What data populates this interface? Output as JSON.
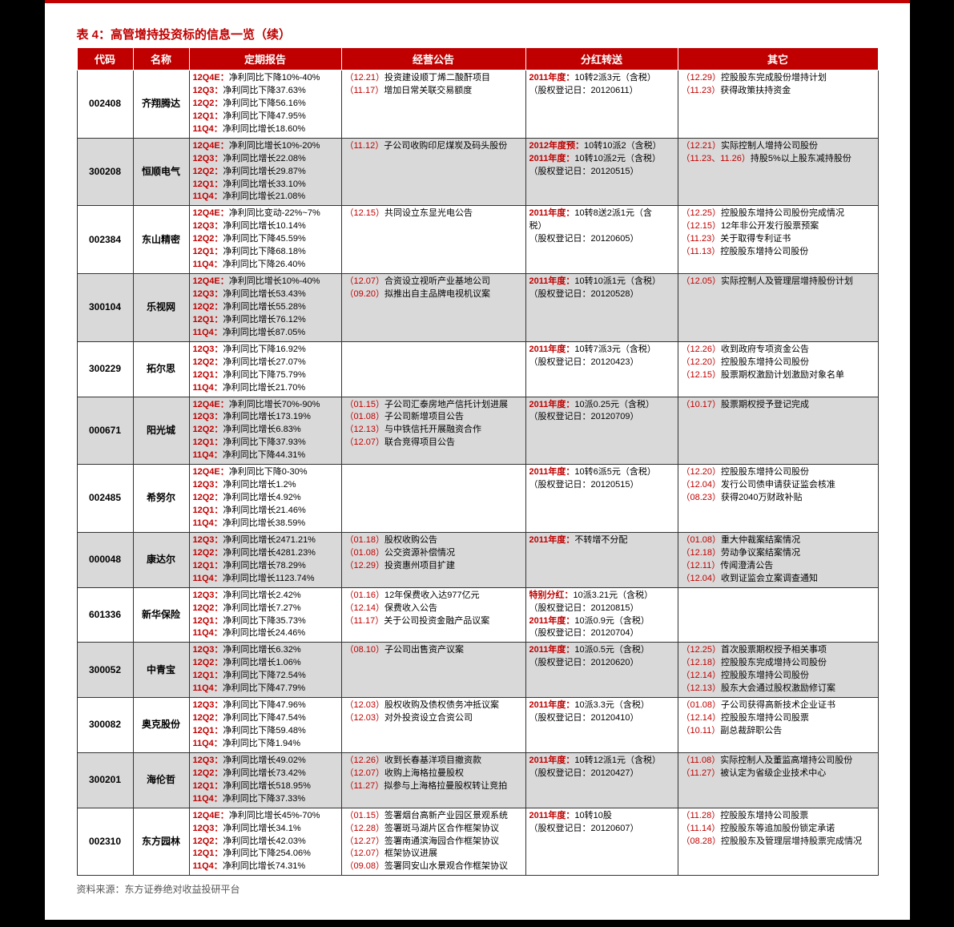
{
  "title": "表 4：高管增持投资标的信息一览（续）",
  "source": "资料来源：东方证券绝对收益投研平台",
  "colors": {
    "accent": "#c00000",
    "header_bg": "#c00000",
    "header_text": "#ffffff",
    "shade": "#d9d9d9",
    "text": "#000000",
    "border": "#333333"
  },
  "columns": [
    "代码",
    "名称",
    "定期报告",
    "经营公告",
    "分红转送",
    "其它"
  ],
  "rows": [
    {
      "code": "002408",
      "name": "齐翔腾达",
      "shaded": false,
      "report": [
        {
          "q": "12Q4E：",
          "t": "净利同比下降10%-40%"
        },
        {
          "q": "12Q3：",
          "t": "净利同比下降37.63%"
        },
        {
          "q": "12Q2：",
          "t": "净利同比下降56.16%"
        },
        {
          "q": "12Q1：",
          "t": "净利同比下降47.95%"
        },
        {
          "q": "11Q4：",
          "t": "净利同比增长18.60%"
        }
      ],
      "announce": [
        {
          "d": "（12.21）",
          "t": "投资建设顺丁烯二酸酐项目"
        },
        {
          "d": "（11.17）",
          "t": "增加日常关联交易额度"
        }
      ],
      "dividend": [
        {
          "sp": "2011年度：",
          "t": "10转2派3元（含税）"
        },
        {
          "t": "（股权登记日：20120611）"
        }
      ],
      "other": [
        {
          "d": "（12.29）",
          "t": "控股股东完成股份增持计划"
        },
        {
          "d": "（11.23）",
          "t": "获得政策扶持资金"
        }
      ]
    },
    {
      "code": "300208",
      "name": "恒顺电气",
      "shaded": true,
      "report": [
        {
          "q": "12Q4E：",
          "t": "净利同比增长10%-20%"
        },
        {
          "q": "12Q3：",
          "t": "净利同比增长22.08%"
        },
        {
          "q": "12Q2：",
          "t": "净利同比增长29.87%"
        },
        {
          "q": "12Q1：",
          "t": "净利同比增长33.10%"
        },
        {
          "q": "11Q4：",
          "t": "净利同比增长21.08%"
        }
      ],
      "announce": [
        {
          "d": "（11.12）",
          "t": "子公司收购印尼煤炭及码头股份"
        }
      ],
      "dividend": [
        {
          "sp": "2012年度预：",
          "t": "10转10派2（含税）"
        },
        {
          "sp": "2011年度：",
          "t": "10转10派2元（含税）"
        },
        {
          "t": "（股权登记日：20120515）"
        }
      ],
      "other": [
        {
          "d": "（12.21）",
          "t": "实际控制人增持公司股份"
        },
        {
          "d": "（11.23、11.26）",
          "t": "持股5%以上股东减持股份"
        }
      ]
    },
    {
      "code": "002384",
      "name": "东山精密",
      "shaded": false,
      "report": [
        {
          "q": "12Q4E：",
          "t": "净利同比变动-22%~7%"
        },
        {
          "q": "12Q3：",
          "t": "净利同比增长10.14%"
        },
        {
          "q": "12Q2：",
          "t": "净利同比下降45.59%"
        },
        {
          "q": "12Q1：",
          "t": "净利同比下降68.18%"
        },
        {
          "q": "11Q4：",
          "t": "净利同比下降26.40%"
        }
      ],
      "announce": [
        {
          "d": "（12.15）",
          "t": "共同设立东显光电公告"
        }
      ],
      "dividend": [
        {
          "sp": "2011年度：",
          "t": "10转8送2派1元（含"
        },
        {
          "t": "税）"
        },
        {
          "t": "（股权登记日：20120605）"
        }
      ],
      "other": [
        {
          "d": "（12.25）",
          "t": "控股股东增持公司股份完成情况"
        },
        {
          "d": "（12.15）",
          "t": "12年非公开发行股票预案"
        },
        {
          "d": "（11.23）",
          "t": "关于取得专利证书"
        },
        {
          "d": "（11.13）",
          "t": "控股股东增持公司股份"
        }
      ]
    },
    {
      "code": "300104",
      "name": "乐视网",
      "shaded": true,
      "report": [
        {
          "q": "12Q4E：",
          "t": "净利同比增长10%-40%"
        },
        {
          "q": "12Q3：",
          "t": "净利同比增长53.43%"
        },
        {
          "q": "12Q2：",
          "t": "净利同比增长55.28%"
        },
        {
          "q": "12Q1：",
          "t": "净利同比增长76.12%"
        },
        {
          "q": "11Q4：",
          "t": "净利同比增长87.05%"
        }
      ],
      "announce": [
        {
          "d": "（12.07）",
          "t": "合资设立视听产业基地公司"
        },
        {
          "d": "（09.20）",
          "t": "拟推出自主品牌电视机议案"
        }
      ],
      "dividend": [
        {
          "sp": "2011年度：",
          "t": "10转10派1元（含税）"
        },
        {
          "t": "（股权登记日：20120528）"
        }
      ],
      "other": [
        {
          "d": "（12.05）",
          "t": "实际控制人及管理层增持股份计划"
        }
      ]
    },
    {
      "code": "300229",
      "name": "拓尔思",
      "shaded": false,
      "report": [
        {
          "q": "12Q3：",
          "t": "净利同比下降16.92%"
        },
        {
          "q": "12Q2：",
          "t": "净利同比增长27.07%"
        },
        {
          "q": "12Q1：",
          "t": "净利同比下降75.79%"
        },
        {
          "q": "11Q4：",
          "t": "净利同比增长21.70%"
        }
      ],
      "announce": [],
      "dividend": [
        {
          "sp": "2011年度：",
          "t": "10转7派3元（含税）"
        },
        {
          "t": "（股权登记日：20120423）"
        }
      ],
      "other": [
        {
          "d": "（12.26）",
          "t": "收到政府专项资金公告"
        },
        {
          "d": "（12.20）",
          "t": "控股股东增持公司股份"
        },
        {
          "d": "（12.15）",
          "t": "股票期权激励计划激励对象名单"
        }
      ]
    },
    {
      "code": "000671",
      "name": "阳光城",
      "shaded": true,
      "report": [
        {
          "q": "12Q4E：",
          "t": "净利同比增长70%-90%"
        },
        {
          "q": "12Q3：",
          "t": "净利同比增长173.19%"
        },
        {
          "q": "12Q2：",
          "t": "净利同比增长6.83%"
        },
        {
          "q": "12Q1：",
          "t": "净利同比下降37.93%"
        },
        {
          "q": "11Q4：",
          "t": "净利同比下降44.31%"
        }
      ],
      "announce": [
        {
          "d": "（01.15）",
          "t": "子公司汇泰房地产信托计划进展"
        },
        {
          "d": "（01.08）",
          "t": "子公司新增项目公告"
        },
        {
          "d": "（12.13）",
          "t": "与中铁信托开展融资合作"
        },
        {
          "d": "（12.07）",
          "t": "联合竞得项目公告"
        }
      ],
      "dividend": [
        {
          "sp": "2011年度：",
          "t": "10派0.25元（含税）"
        },
        {
          "t": "（股权登记日：20120709）"
        }
      ],
      "other": [
        {
          "d": "（10.17）",
          "t": "股票期权授予登记完成"
        }
      ]
    },
    {
      "code": "002485",
      "name": "希努尔",
      "shaded": false,
      "report": [
        {
          "q": "12Q4E：",
          "t": "净利同比下降0-30%"
        },
        {
          "q": "12Q3：",
          "t": "净利同比增长1.2%"
        },
        {
          "q": "12Q2：",
          "t": "净利同比增长4.92%"
        },
        {
          "q": "12Q1：",
          "t": "净利同比增长21.46%"
        },
        {
          "q": "11Q4：",
          "t": "净利同比增长38.59%"
        }
      ],
      "announce": [],
      "dividend": [
        {
          "sp": "2011年度：",
          "t": "10转6派5元（含税）"
        },
        {
          "t": "（股权登记日：20120515）"
        }
      ],
      "other": [
        {
          "d": "（12.20）",
          "t": "控股股东增持公司股份"
        },
        {
          "d": "（12.04）",
          "t": "发行公司债申请获证监会核准"
        },
        {
          "d": "（08.23）",
          "t": "获得2040万财政补贴"
        }
      ]
    },
    {
      "code": "000048",
      "name": "康达尔",
      "shaded": true,
      "report": [
        {
          "q": "12Q3：",
          "t": "净利同比增长2471.21%"
        },
        {
          "q": "12Q2：",
          "t": "净利同比增长4281.23%"
        },
        {
          "q": "12Q1：",
          "t": "净利同比增长78.29%"
        },
        {
          "q": "11Q4：",
          "t": "净利同比增长1123.74%"
        }
      ],
      "announce": [
        {
          "d": "（01.18）",
          "t": "股权收购公告"
        },
        {
          "d": "（01.08）",
          "t": "公交资源补偿情况"
        },
        {
          "d": "（12.29）",
          "t": "投资惠州项目扩建"
        }
      ],
      "dividend": [
        {
          "sp": "2011年度：",
          "t": "不转增不分配"
        }
      ],
      "other": [
        {
          "d": "（01.08）",
          "t": "重大仲裁案结案情况"
        },
        {
          "d": "（12.18）",
          "t": "劳动争议案结案情况"
        },
        {
          "d": "（12.11）",
          "t": "传闻澄清公告"
        },
        {
          "d": "（12.04）",
          "t": "收到证监会立案调查通知"
        }
      ]
    },
    {
      "code": "601336",
      "name": "新华保险",
      "shaded": false,
      "report": [
        {
          "q": "12Q3：",
          "t": "净利同比增长2.42%"
        },
        {
          "q": "12Q2：",
          "t": "净利同比增长7.27%"
        },
        {
          "q": "12Q1：",
          "t": "净利同比下降35.73%"
        },
        {
          "q": "11Q4：",
          "t": "净利同比增长24.46%"
        }
      ],
      "announce": [
        {
          "d": "（01.16）",
          "t": "12年保费收入达977亿元"
        },
        {
          "d": "（12.14）",
          "t": "保费收入公告"
        },
        {
          "d": "（11.17）",
          "t": "关于公司投资金融产品议案"
        }
      ],
      "dividend": [
        {
          "sp": "特别分红：",
          "t": "10派3.21元（含税）"
        },
        {
          "t": "（股权登记日：20120815）"
        },
        {
          "sp": "2011年度：",
          "t": "10派0.9元（含税）"
        },
        {
          "t": "（股权登记日：20120704）"
        }
      ],
      "other": []
    },
    {
      "code": "300052",
      "name": "中青宝",
      "shaded": true,
      "report": [
        {
          "q": "12Q3：",
          "t": "净利同比增长6.32%"
        },
        {
          "q": "12Q2：",
          "t": "净利同比增长1.06%"
        },
        {
          "q": "12Q1：",
          "t": "净利同比下降72.54%"
        },
        {
          "q": "11Q4：",
          "t": "净利同比下降47.79%"
        }
      ],
      "announce": [
        {
          "d": "（08.10）",
          "t": "子公司出售资产议案"
        }
      ],
      "dividend": [
        {
          "sp": "2011年度：",
          "t": "10派0.5元（含税）"
        },
        {
          "t": "（股权登记日：20120620）"
        }
      ],
      "other": [
        {
          "d": "（12.25）",
          "t": "首次股票期权授予相关事项"
        },
        {
          "d": "（12.18）",
          "t": "控股股东完成增持公司股份"
        },
        {
          "d": "（12.14）",
          "t": "控股股东增持公司股份"
        },
        {
          "d": "（12.13）",
          "t": "股东大会通过股权激励修订案"
        }
      ]
    },
    {
      "code": "300082",
      "name": "奥克股份",
      "shaded": false,
      "report": [
        {
          "q": "12Q3：",
          "t": "净利同比下降47.96%"
        },
        {
          "q": "12Q2：",
          "t": "净利同比下降47.54%"
        },
        {
          "q": "12Q1：",
          "t": "净利同比下降59.48%"
        },
        {
          "q": "11Q4：",
          "t": "净利同比下降1.94%"
        }
      ],
      "announce": [
        {
          "d": "（12.03）",
          "t": "股权收购及债权债务冲抵议案"
        },
        {
          "d": "（12.03）",
          "t": "对外投资设立合资公司"
        }
      ],
      "dividend": [
        {
          "sp": "2011年度：",
          "t": "10派3.3元（含税）"
        },
        {
          "t": "（股权登记日：20120410）"
        }
      ],
      "other": [
        {
          "d": "（01.08）",
          "t": "子公司获得高新技术企业证书"
        },
        {
          "d": "（12.14）",
          "t": "控股股东增持公司股票"
        },
        {
          "d": "（10.11）",
          "t": "副总裁辞职公告"
        }
      ]
    },
    {
      "code": "300201",
      "name": "海伦哲",
      "shaded": true,
      "report": [
        {
          "q": "12Q3：",
          "t": "净利同比增长49.02%"
        },
        {
          "q": "12Q2：",
          "t": "净利同比增长73.42%"
        },
        {
          "q": "12Q1：",
          "t": "净利同比增长518.95%"
        },
        {
          "q": "11Q4：",
          "t": "净利同比下降37.33%"
        }
      ],
      "announce": [
        {
          "d": "（12.26）",
          "t": "收到长春基洋项目撤资款"
        },
        {
          "d": "（12.07）",
          "t": "收购上海格拉曼股权"
        },
        {
          "d": "（11.27）",
          "t": "拟参与上海格拉曼股权转让竞拍"
        }
      ],
      "dividend": [
        {
          "sp": "2011年度：",
          "t": "10转12派1元（含税）"
        },
        {
          "t": "（股权登记日：20120427）"
        }
      ],
      "other": [
        {
          "d": "（11.08）",
          "t": "实际控制人及董监高增持公司股份"
        },
        {
          "d": "（11.27）",
          "t": "被认定为省级企业技术中心"
        }
      ]
    },
    {
      "code": "002310",
      "name": "东方园林",
      "shaded": false,
      "report": [
        {
          "q": "12Q4E：",
          "t": "净利同比增长45%-70%"
        },
        {
          "q": "12Q3：",
          "t": "净利同比增长34.1%"
        },
        {
          "q": "12Q2：",
          "t": "净利同比增长42.03%"
        },
        {
          "q": "12Q1：",
          "t": "净利同比下降254.06%"
        },
        {
          "q": "11Q4：",
          "t": "净利同比增长74.31%"
        }
      ],
      "announce": [
        {
          "d": "（01.15）",
          "t": "签署烟台高新产业园区景观系统"
        },
        {
          "d": "（12.28）",
          "t": "签署斑马湖片区合作框架协议"
        },
        {
          "d": "（12.27）",
          "t": "签署南通滨海园合作框架协议"
        },
        {
          "d": "（12.07）",
          "t": "框架协议进展"
        },
        {
          "d": "（09.08）",
          "t": "签署同安山水景观合作框架协议"
        }
      ],
      "dividend": [
        {
          "sp": "2011年度：",
          "t": "10转10股"
        },
        {
          "t": "（股权登记日：20120607）"
        }
      ],
      "other": [
        {
          "d": "（11.28）",
          "t": "控股股东增持公司股票"
        },
        {
          "d": "（11.14）",
          "t": "控股股东等追加股份锁定承诺"
        },
        {
          "d": "（08.28）",
          "t": "控股股东及管理层增持股票完成情况"
        }
      ]
    }
  ]
}
